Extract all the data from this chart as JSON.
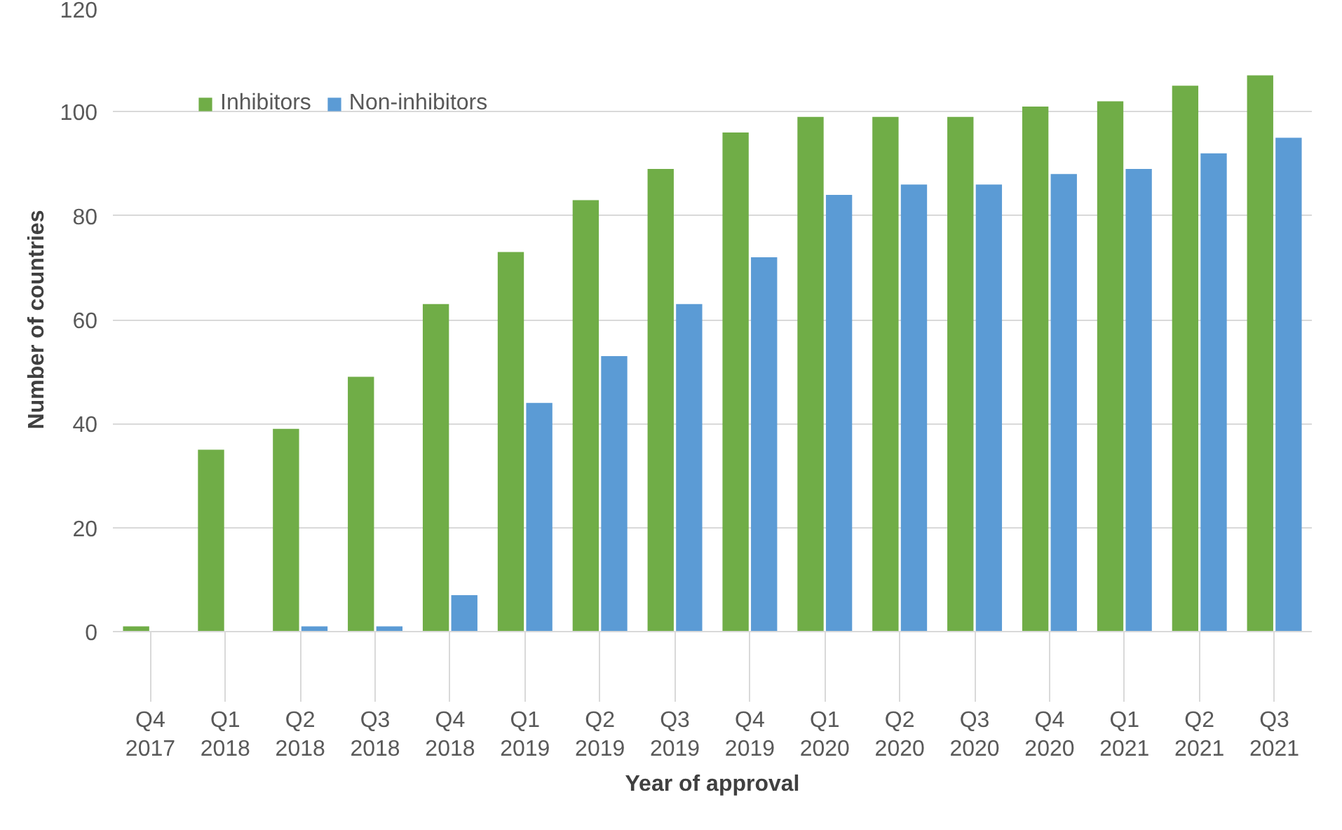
{
  "chart_data": {
    "type": "bar",
    "xlabel": "Year of approval",
    "ylabel": "Number of countries",
    "categories": [
      "Q4\n2017",
      "Q1\n2018",
      "Q2\n2018",
      "Q3\n2018",
      "Q4\n2018",
      "Q1\n2019",
      "Q2\n2019",
      "Q3\n2019",
      "Q4\n2019",
      "Q1\n2020",
      "Q2\n2020",
      "Q3\n2020",
      "Q4\n2020",
      "Q1\n2021",
      "Q2\n2021",
      "Q3\n2021"
    ],
    "series": [
      {
        "name": "Inhibitors",
        "color": "#70ad47",
        "values": [
          1,
          35,
          39,
          49,
          63,
          73,
          83,
          89,
          96,
          99,
          99,
          99,
          101,
          102,
          105,
          107
        ]
      },
      {
        "name": "Non-inhibitors",
        "color": "#5b9bd5",
        "values": [
          0,
          0,
          1,
          1,
          7,
          44,
          53,
          63,
          72,
          84,
          86,
          86,
          88,
          89,
          92,
          95
        ]
      }
    ],
    "ylim": [
      0,
      120
    ],
    "yticks": [
      0,
      20,
      40,
      60,
      80,
      100,
      120
    ],
    "grid": "y",
    "legend": "top left"
  }
}
